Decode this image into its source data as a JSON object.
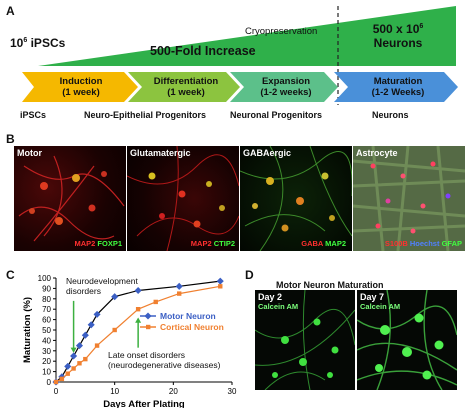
{
  "panel_a": {
    "letter": "A",
    "ipsc_count": "10",
    "ipsc_exp": "6",
    "ipsc_suffix": " iPSCs",
    "fold_increase": "500-Fold Increase",
    "cryopreservation": "Cryopreservation",
    "neurons_count": "500 x 10",
    "neurons_exp": "6",
    "neurons_label": "Neurons",
    "stages": [
      {
        "name": "Induction",
        "duration": "(1 week)",
        "color": "#f5b800"
      },
      {
        "name": "Differentiation",
        "duration": "(1 week)",
        "color": "#8cc43f"
      },
      {
        "name": "Expansion",
        "duration": "(1-2 weeks)",
        "color": "#5cc08a"
      },
      {
        "name": "Maturation",
        "duration": "(1-2 Weeks)",
        "color": "#4a90d9"
      }
    ],
    "cell_types": [
      "iPSCs",
      "Neuro-Epithelial Progenitors",
      "Neuronal Progenitors",
      "Neurons"
    ],
    "triangle_color": "#2fb04a"
  },
  "panel_b": {
    "letter": "B",
    "images": [
      {
        "title": "Motor",
        "markers": [
          {
            "text": "MAP2",
            "color": "#ff3030"
          },
          {
            "text": "FOXP1",
            "color": "#40ff40"
          }
        ]
      },
      {
        "title": "Glutamatergic",
        "markers": [
          {
            "text": "MAP2",
            "color": "#ff3030"
          },
          {
            "text": "CTIP2",
            "color": "#40ff40"
          }
        ]
      },
      {
        "title": "GABAergic",
        "markers": [
          {
            "text": "GABA",
            "color": "#ff3030"
          },
          {
            "text": "MAP2",
            "color": "#40ff40"
          }
        ]
      },
      {
        "title": "Astrocyte",
        "markers": [
          {
            "text": "S100B",
            "color": "#ff3030"
          },
          {
            "text": "Hoechst",
            "color": "#5080ff"
          },
          {
            "text": "GFAP",
            "color": "#40ff40"
          }
        ]
      }
    ]
  },
  "panel_c": {
    "letter": "C",
    "annotation_top": [
      "Neurodevelopment",
      "disorders"
    ],
    "annotation_bottom": [
      "Late onset disorders",
      "(neurodegenerative diseases)"
    ]
  },
  "panel_d": {
    "letter": "D",
    "title": "Motor Neuron Maturation",
    "images": [
      {
        "title": "Day 2",
        "stain": "Calcein AM"
      },
      {
        "title": "Day 7",
        "stain": "Calcein AM"
      }
    ]
  },
  "chart_data": {
    "type": "line",
    "xlabel": "Days After Plating",
    "ylabel": "Maturation (%)",
    "xlim": [
      0,
      30
    ],
    "ylim": [
      0,
      100
    ],
    "xticks": [
      0,
      10,
      20,
      30
    ],
    "yticks": [
      0,
      10,
      20,
      30,
      40,
      50,
      60,
      70,
      80,
      90,
      100
    ],
    "legend_position": "center-right",
    "series": [
      {
        "name": "Motor Neuron",
        "color": "#3b5fc4",
        "x": [
          0,
          1,
          2,
          3,
          4,
          5,
          6,
          7,
          10,
          14,
          21,
          28
        ],
        "y": [
          0,
          5,
          15,
          25,
          35,
          45,
          55,
          65,
          82,
          88,
          92,
          97
        ]
      },
      {
        "name": "Cortical Neuron",
        "color": "#f08030",
        "x": [
          0,
          1,
          2,
          3,
          4,
          5,
          7,
          10,
          14,
          17,
          21,
          28
        ],
        "y": [
          0,
          3,
          8,
          13,
          18,
          22,
          35,
          50,
          70,
          77,
          85,
          92
        ]
      }
    ]
  }
}
